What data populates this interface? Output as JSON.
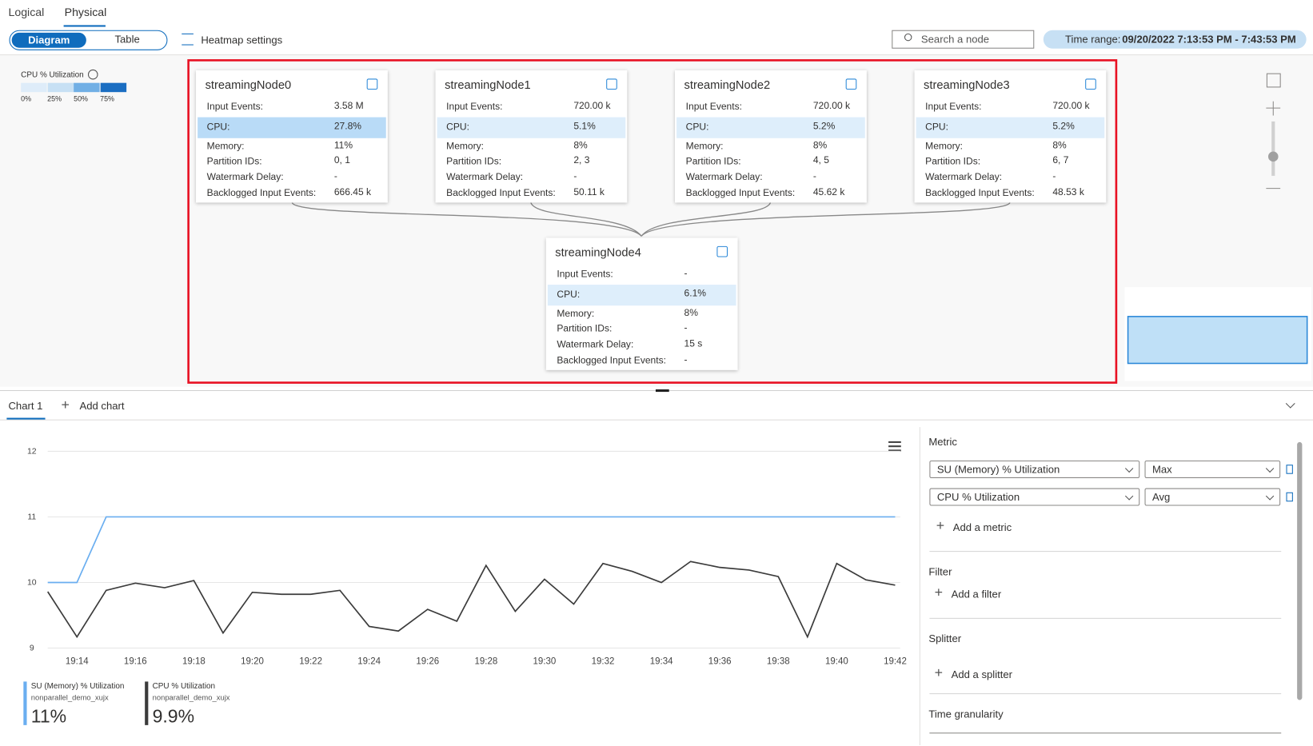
{
  "tabs": [
    "Logical",
    "Physical"
  ],
  "view_toggle": [
    "Diagram",
    "Table"
  ],
  "heatmap_settings": "Heatmap settings",
  "search_placeholder": "Search a node",
  "time_range": {
    "label": "Time range:",
    "value": "09/20/2022 7:13:53 PM - 7:43:53 PM"
  },
  "heatmap_legend": {
    "title": "CPU % Utilization",
    "ticks": [
      "0%",
      "25%",
      "50%",
      "75%"
    ]
  },
  "nodes": [
    {
      "name": "streamingNode0",
      "rows": [
        [
          "Input Events:",
          "3.58 M"
        ],
        [
          "CPU:",
          "27.8%"
        ],
        [
          "Memory:",
          "11%"
        ],
        [
          "Partition IDs:",
          "0, 1"
        ],
        [
          "Watermark Delay:",
          "-"
        ],
        [
          "Backlogged Input Events:",
          "666.45 k"
        ]
      ]
    },
    {
      "name": "streamingNode1",
      "rows": [
        [
          "Input Events:",
          "720.00 k"
        ],
        [
          "CPU:",
          "5.1%"
        ],
        [
          "Memory:",
          "8%"
        ],
        [
          "Partition IDs:",
          "2, 3"
        ],
        [
          "Watermark Delay:",
          "-"
        ],
        [
          "Backlogged Input Events:",
          "50.11 k"
        ]
      ]
    },
    {
      "name": "streamingNode2",
      "rows": [
        [
          "Input Events:",
          "720.00 k"
        ],
        [
          "CPU:",
          "5.2%"
        ],
        [
          "Memory:",
          "8%"
        ],
        [
          "Partition IDs:",
          "4, 5"
        ],
        [
          "Watermark Delay:",
          "-"
        ],
        [
          "Backlogged Input Events:",
          "45.62 k"
        ]
      ]
    },
    {
      "name": "streamingNode3",
      "rows": [
        [
          "Input Events:",
          "720.00 k"
        ],
        [
          "CPU:",
          "5.2%"
        ],
        [
          "Memory:",
          "8%"
        ],
        [
          "Partition IDs:",
          "6, 7"
        ],
        [
          "Watermark Delay:",
          "-"
        ],
        [
          "Backlogged Input Events:",
          "48.53 k"
        ]
      ]
    },
    {
      "name": "streamingNode4",
      "rows": [
        [
          "Input Events:",
          "-"
        ],
        [
          "CPU:",
          "6.1%"
        ],
        [
          "Memory:",
          "8%"
        ],
        [
          "Partition IDs:",
          "-"
        ],
        [
          "Watermark Delay:",
          "15 s"
        ],
        [
          "Backlogged Input Events:",
          "-"
        ]
      ]
    }
  ],
  "chart_tabs": {
    "active": "Chart 1",
    "add": "Add chart"
  },
  "chart_data": {
    "type": "line",
    "categories": [
      null,
      "19:14",
      null,
      "19:16",
      null,
      "19:18",
      null,
      "19:20",
      null,
      "19:22",
      null,
      "19:24",
      null,
      "19:26",
      null,
      "19:28",
      null,
      "19:30",
      null,
      "19:32",
      null,
      "19:34",
      null,
      "19:36",
      null,
      "19:38",
      null,
      "19:40",
      null,
      "19:42"
    ],
    "ylim": [
      9,
      12
    ],
    "yticks": [
      9,
      10,
      11,
      12
    ],
    "grid": true,
    "series": [
      {
        "name": "SU (Memory) % Utilization",
        "resource": "nonparallel_demo_xujx",
        "summary": "11%",
        "color": "#6aaef0",
        "values": [
          10,
          10,
          11,
          11,
          11,
          11,
          11,
          11,
          11,
          11,
          11,
          11,
          11,
          11,
          11,
          11,
          11,
          11,
          11,
          11,
          11,
          11,
          11,
          11,
          11,
          11,
          11,
          11,
          11,
          11
        ]
      },
      {
        "name": "CPU % Utilization",
        "resource": "nonparallel_demo_xujx",
        "summary": "9.9%",
        "color": "#3b3b3b",
        "values": [
          9.86,
          9.17,
          9.88,
          9.99,
          9.92,
          10.03,
          9.23,
          9.85,
          9.82,
          9.82,
          9.88,
          9.33,
          9.26,
          9.59,
          9.41,
          10.26,
          9.56,
          10.05,
          9.67,
          10.29,
          10.17,
          10.0,
          10.32,
          10.23,
          10.19,
          10.09,
          9.17,
          10.29,
          10.04,
          9.96
        ]
      }
    ]
  },
  "metric_panel": {
    "metric_title": "Metric",
    "metrics": [
      {
        "metric": "SU (Memory) % Utilization",
        "aggregation": "Max"
      },
      {
        "metric": "CPU % Utilization",
        "aggregation": "Avg"
      }
    ],
    "add_metric": "Add a metric",
    "filter_title": "Filter",
    "add_filter": "Add a filter",
    "splitter_title": "Splitter",
    "add_splitter": "Add a splitter",
    "granularity_title": "Time granularity"
  }
}
